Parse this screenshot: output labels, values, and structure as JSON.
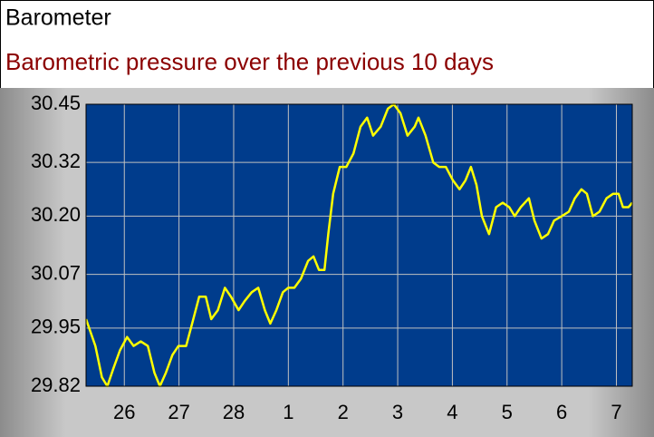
{
  "chart_data": {
    "type": "line",
    "title": "Barometer",
    "subtitle": "Barometric pressure over the previous 10 days",
    "color": "#ffff00",
    "x": [
      -0.7,
      -0.53,
      -0.41,
      -0.31,
      -0.2,
      -0.08,
      0.05,
      0.17,
      0.3,
      0.43,
      0.55,
      0.65,
      0.76,
      0.88,
      0.99,
      1.13,
      1.24,
      1.37,
      1.49,
      1.59,
      1.71,
      1.84,
      1.95,
      2.09,
      2.2,
      2.33,
      2.45,
      2.57,
      2.67,
      2.78,
      2.9,
      3.0,
      3.11,
      3.23,
      3.36,
      3.46,
      3.56,
      3.66,
      3.73,
      3.82,
      3.94,
      4.06,
      4.19,
      4.32,
      4.44,
      4.55,
      4.69,
      4.82,
      4.93,
      5.05,
      5.18,
      5.31,
      5.38,
      5.51,
      5.65,
      5.76,
      5.88,
      6.01,
      6.13,
      6.24,
      6.34,
      6.44,
      6.54,
      6.67,
      6.8,
      6.92,
      7.04,
      7.14,
      7.25,
      7.4,
      7.5,
      7.63,
      7.75,
      7.86,
      8.0,
      8.13,
      8.24,
      8.36,
      8.46,
      8.57,
      8.69,
      8.82,
      8.94,
      9.04,
      9.12,
      9.22,
      9.29
    ],
    "values": [
      29.97,
      29.91,
      29.84,
      29.82,
      29.86,
      29.9,
      29.93,
      29.91,
      29.92,
      29.91,
      29.85,
      29.82,
      29.85,
      29.89,
      29.91,
      29.91,
      29.96,
      30.02,
      30.02,
      29.97,
      29.99,
      30.04,
      30.02,
      29.99,
      30.01,
      30.03,
      30.04,
      29.99,
      29.96,
      29.99,
      30.03,
      30.04,
      30.04,
      30.06,
      30.1,
      30.11,
      30.08,
      30.08,
      30.16,
      30.25,
      30.31,
      30.31,
      30.34,
      30.4,
      30.42,
      30.38,
      30.4,
      30.44,
      30.45,
      30.43,
      30.38,
      30.4,
      30.42,
      30.38,
      30.32,
      30.31,
      30.31,
      30.28,
      30.26,
      30.28,
      30.31,
      30.27,
      30.2,
      30.16,
      30.22,
      30.23,
      30.22,
      30.2,
      30.22,
      30.24,
      30.19,
      30.15,
      30.16,
      30.19,
      30.2,
      30.21,
      30.24,
      30.26,
      30.25,
      30.2,
      30.21,
      30.24,
      30.25,
      30.25,
      30.22,
      30.22,
      30.23
    ],
    "xlim": [
      -0.7,
      9.29
    ],
    "xticks": [
      {
        "value": 0,
        "label": "26"
      },
      {
        "value": 1,
        "label": "27"
      },
      {
        "value": 2,
        "label": "28"
      },
      {
        "value": 3,
        "label": "1"
      },
      {
        "value": 4,
        "label": "2"
      },
      {
        "value": 5,
        "label": "3"
      },
      {
        "value": 6,
        "label": "4"
      },
      {
        "value": 7,
        "label": "5"
      },
      {
        "value": 8,
        "label": "6"
      },
      {
        "value": 9,
        "label": "7"
      }
    ],
    "ylim": [
      29.82,
      30.45
    ],
    "yticks": [
      29.82,
      29.95,
      30.07,
      {
        "value": 30.2,
        "label": "30.20"
      },
      30.32,
      30.45
    ],
    "grid": true
  }
}
